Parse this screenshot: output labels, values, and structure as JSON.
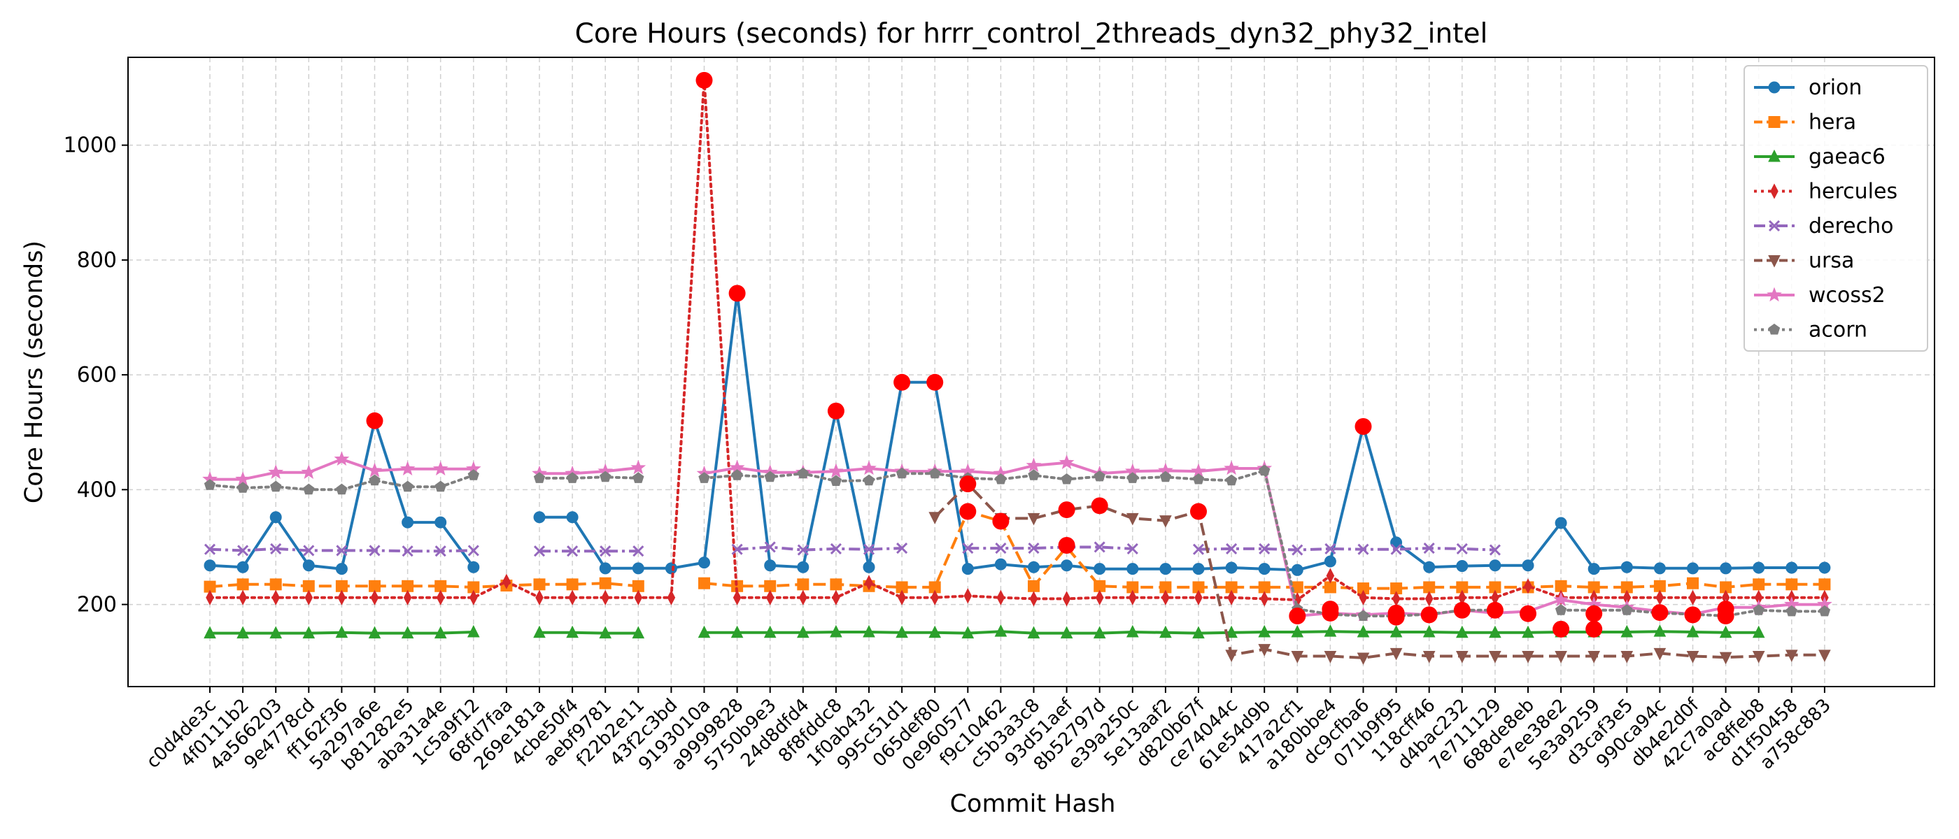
{
  "chart_data": {
    "type": "line",
    "title": "Core Hours (seconds) for hrrr_control_2threads_dyn32_phy32_intel",
    "xlabel": "Commit Hash",
    "ylabel": "Core Hours (seconds)",
    "ylim": [
      57,
      1153
    ],
    "yticks": [
      200,
      400,
      600,
      800,
      1000
    ],
    "grid": true,
    "legend_position": "top-right",
    "categories": [
      "c0d4de3c",
      "4f0111b2",
      "4a566203",
      "9e4778cd",
      "ff162f36",
      "5a297a6e",
      "b81282e5",
      "aba31a4e",
      "1c5a9f12",
      "68fd7faa",
      "269e181a",
      "4cbe50f4",
      "aebf9781",
      "f22b2e11",
      "43f2c3bd",
      "9193010a",
      "a9999828",
      "5750b9e3",
      "24d8dfd4",
      "8f8fddc8",
      "1f0ab432",
      "995c51d1",
      "065def80",
      "0e960577",
      "f9c10462",
      "c5b3a3c8",
      "93d51aef",
      "8b52797d",
      "e39a250c",
      "5e13aaf2",
      "d820b67f",
      "ce74044c",
      "61e54d9b",
      "417a2cf1",
      "a180bbe4",
      "dc9cfba6",
      "071b9f95",
      "118cff46",
      "d4bac232",
      "7e711129",
      "688de8eb",
      "e7ee38e2",
      "5e3a9259",
      "d3caf3e5",
      "990ca94c",
      "db4e2d0f",
      "42c7a0ad",
      "ac8ffeb8",
      "d1f50458",
      "a758c883"
    ],
    "series": [
      {
        "name": "orion",
        "color": "#1f77b4",
        "marker": "circle",
        "dash": "solid",
        "values": [
          268,
          265,
          352,
          268,
          262,
          520,
          343,
          343,
          265,
          null,
          352,
          352,
          263,
          263,
          263,
          273,
          742,
          268,
          265,
          537,
          265,
          587,
          587,
          262,
          270,
          265,
          268,
          262,
          262,
          262,
          262,
          264,
          262,
          260,
          275,
          510,
          308,
          265,
          267,
          268,
          268,
          342,
          262,
          265,
          263,
          263,
          263,
          264,
          264,
          264
        ]
      },
      {
        "name": "hera",
        "color": "#ff7f0e",
        "marker": "square",
        "dash": "dashed",
        "values": [
          231,
          235,
          235,
          232,
          232,
          232,
          232,
          232,
          230,
          233,
          235,
          235,
          237,
          232,
          null,
          237,
          232,
          232,
          235,
          235,
          232,
          230,
          230,
          362,
          345,
          232,
          300,
          232,
          230,
          230,
          230,
          230,
          230,
          230,
          230,
          228,
          228,
          230,
          230,
          230,
          230,
          232,
          230,
          230,
          232,
          237,
          230,
          235,
          235,
          235
        ]
      },
      {
        "name": "gaeac6",
        "color": "#2ca02c",
        "marker": "triangle",
        "dash": "solid",
        "values": [
          150,
          150,
          150,
          150,
          151,
          150,
          150,
          150,
          152,
          null,
          151,
          151,
          150,
          150,
          null,
          151,
          151,
          151,
          151,
          152,
          152,
          151,
          151,
          150,
          153,
          150,
          150,
          150,
          152,
          151,
          150,
          151,
          152,
          152,
          153,
          152,
          152,
          152,
          151,
          151,
          151,
          152,
          152,
          152,
          153,
          152,
          151,
          151,
          null,
          null
        ]
      },
      {
        "name": "hercules",
        "color": "#d62728",
        "marker": "diamond",
        "dash": "dotted",
        "values": [
          212,
          212,
          212,
          212,
          212,
          212,
          212,
          212,
          212,
          240,
          212,
          212,
          212,
          212,
          212,
          1113,
          212,
          212,
          212,
          212,
          238,
          212,
          212,
          215,
          212,
          210,
          210,
          212,
          212,
          212,
          212,
          212,
          210,
          208,
          250,
          212,
          210,
          210,
          212,
          212,
          232,
          212,
          212,
          212,
          212,
          212,
          212,
          212,
          212,
          212
        ]
      },
      {
        "name": "derecho",
        "color": "#9467bd",
        "marker": "x",
        "dash": "dashdot",
        "values": [
          296,
          294,
          297,
          294,
          294,
          294,
          293,
          293,
          294,
          null,
          293,
          293,
          293,
          293,
          null,
          null,
          296,
          300,
          295,
          297,
          296,
          298,
          null,
          298,
          298,
          298,
          300,
          300,
          297,
          null,
          296,
          297,
          297,
          295,
          297,
          296,
          296,
          298,
          297,
          295,
          null,
          null,
          null,
          null,
          null,
          null,
          null,
          null,
          null,
          null
        ]
      },
      {
        "name": "ursa",
        "color": "#8c564b",
        "marker": "triangle-down",
        "dash": "dashed",
        "values": [
          null,
          null,
          null,
          null,
          null,
          null,
          null,
          null,
          null,
          null,
          null,
          null,
          null,
          null,
          null,
          null,
          null,
          null,
          null,
          null,
          null,
          null,
          352,
          410,
          350,
          350,
          365,
          372,
          350,
          346,
          362,
          112,
          122,
          110,
          110,
          107,
          115,
          110,
          110,
          110,
          110,
          110,
          110,
          110,
          115,
          110,
          108,
          110,
          112,
          112
        ]
      },
      {
        "name": "wcoss2",
        "color": "#e377c2",
        "marker": "star",
        "dash": "solid",
        "values": [
          418,
          418,
          430,
          430,
          453,
          433,
          436,
          436,
          436,
          null,
          428,
          428,
          432,
          438,
          null,
          428,
          438,
          430,
          430,
          432,
          437,
          432,
          432,
          432,
          428,
          442,
          447,
          428,
          432,
          433,
          432,
          437,
          437,
          180,
          185,
          182,
          185,
          182,
          190,
          185,
          188,
          208,
          200,
          195,
          188,
          183,
          195,
          195,
          200,
          200
        ]
      },
      {
        "name": "acorn",
        "color": "#7f7f7f",
        "marker": "pentagon",
        "dash": "dotted",
        "values": [
          408,
          403,
          405,
          400,
          400,
          416,
          405,
          405,
          425,
          null,
          420,
          420,
          422,
          420,
          null,
          420,
          425,
          422,
          428,
          415,
          416,
          428,
          428,
          420,
          418,
          425,
          418,
          423,
          420,
          422,
          418,
          416,
          433,
          192,
          183,
          180,
          180,
          183,
          190,
          190,
          null,
          190,
          190,
          190,
          185,
          183,
          180,
          190,
          188,
          188
        ]
      }
    ],
    "highlights": [
      {
        "x": "5a297a6e",
        "y": 520
      },
      {
        "x": "9193010a",
        "y": 1113
      },
      {
        "x": "a9999828",
        "y": 742
      },
      {
        "x": "8f8fddc8",
        "y": 537
      },
      {
        "x": "995c51d1",
        "y": 587
      },
      {
        "x": "065def80",
        "y": 587
      },
      {
        "x": "0e960577",
        "y": 410
      },
      {
        "x": "0e960577",
        "y": 362
      },
      {
        "x": "f9c10462",
        "y": 345
      },
      {
        "x": "93d51aef",
        "y": 365
      },
      {
        "x": "93d51aef",
        "y": 303
      },
      {
        "x": "8b52797d",
        "y": 372
      },
      {
        "x": "d820b67f",
        "y": 362
      },
      {
        "x": "417a2cf1",
        "y": 180
      },
      {
        "x": "a180bbe4",
        "y": 192
      },
      {
        "x": "a180bbe4",
        "y": 185
      },
      {
        "x": "dc9cfba6",
        "y": 510
      },
      {
        "x": "071b9f95",
        "y": 185
      },
      {
        "x": "071b9f95",
        "y": 178
      },
      {
        "x": "118cff46",
        "y": 182
      },
      {
        "x": "d4bac232",
        "y": 190
      },
      {
        "x": "7e711129",
        "y": 190
      },
      {
        "x": "688de8eb",
        "y": 184
      },
      {
        "x": "e7ee38e2",
        "y": 157
      },
      {
        "x": "5e3a9259",
        "y": 157
      },
      {
        "x": "5e3a9259",
        "y": 184
      },
      {
        "x": "990ca94c",
        "y": 186
      },
      {
        "x": "db4e2d0f",
        "y": 182
      },
      {
        "x": "42c7a0ad",
        "y": 192
      },
      {
        "x": "42c7a0ad",
        "y": 180
      }
    ]
  }
}
